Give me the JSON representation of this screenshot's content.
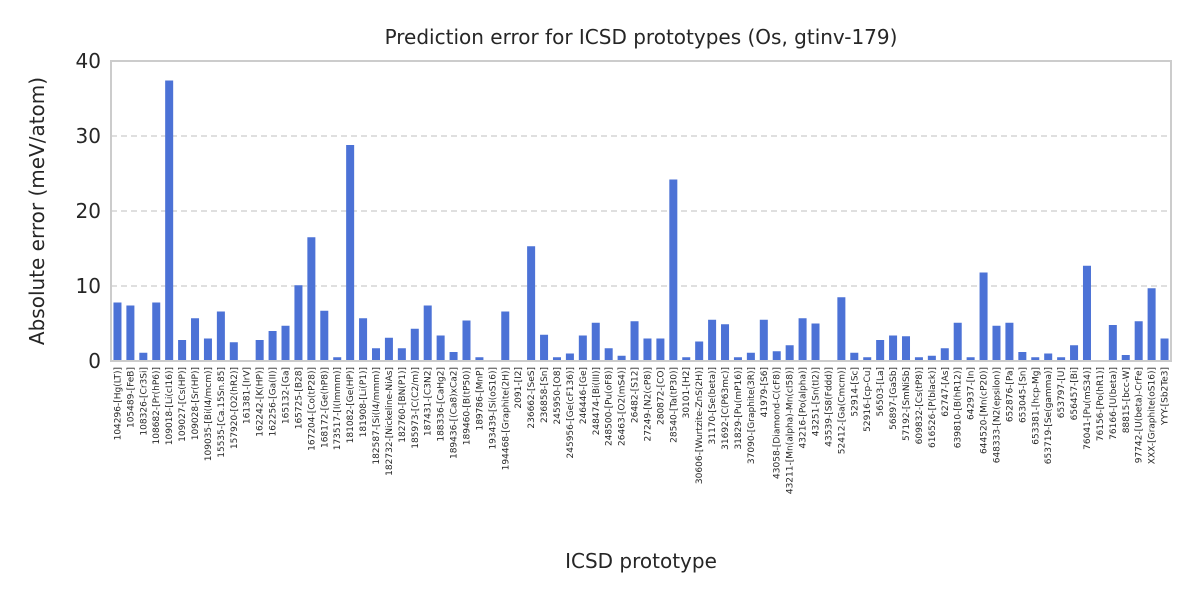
{
  "chart_data": {
    "type": "bar",
    "title": "Prediction error for ICSD prototypes (Os, gtinv-179)",
    "xlabel": "ICSD prototype",
    "ylabel": "Absolute error (meV/atom)",
    "ylim": [
      0,
      40
    ],
    "yticks": [
      0,
      10,
      20,
      30,
      40
    ],
    "grid": "horizontal dashed",
    "bar_color": "#4c72d6",
    "categories": [
      "104296-[Hg(LT)]",
      "105489-[FeB]",
      "108326-[Cr3Si]",
      "108682-[Pr(hP6)]",
      "109018-[Li(cI16)]",
      "109027-[Cs(HP)]",
      "109028-[Sr(HP)]",
      "109035-[Bi(I4/mcm)]",
      "15535-[Ca.15Sn.85]",
      "157920-[O2(hR2)]",
      "161381-[IrV]",
      "162242-[K(HP)]",
      "162256-[Ga(II)]",
      "165132-[Ga]",
      "165725-[B28]",
      "167204-[Co(tP28)]",
      "168172-[Ge(hP8)]",
      "173517-[I(Immm)]",
      "181082-[Ge(HP)]",
      "181908-[Li(P1)]",
      "182587-[Si(I4/mmm)]",
      "182732-[Nickeline-NiAs]",
      "182760-[BN(P1)]",
      "185973-[C(C2/m)]",
      "187431-[C3N2]",
      "188336-[CaHg2]",
      "189436-[(Ca8)xCa2]",
      "189460-[B(tP50)]",
      "189786-[MnP]",
      "193439-[Si(oS16)]",
      "194468-[Graphite(2H)]",
      "2091-[I2]",
      "236662-[SeS]",
      "236858-[Sn]",
      "245950-[O8]",
      "245956-[Ge(cF136)]",
      "246446-[Ge]",
      "248474-[Bi(III)]",
      "248500-[Pu(oF8)]",
      "26463-[O2(mS4)]",
      "26482-[S12]",
      "27249-[N2(cP8)]",
      "280872-[CO]",
      "28540-[Ta(tP30)]",
      "30101-[H2]",
      "30606-[Wurtzite-ZnS(2H)]",
      "31170-[Se(beta)]",
      "31692-[C(P63mc)]",
      "31829-[Pu(mP16)]",
      "37090-[Graphite(3R)]",
      "41979-[S6]",
      "43058-[Diamond-C(cF8)]",
      "43211-[Mn(alpha)-Mn(cI58)]",
      "43216-[Po(alpha)]",
      "43251-[Sn(tI2)]",
      "43539-[S8(Fddd)]",
      "52412-[Ga(Cmcm)]",
      "52914-[Sc]",
      "52916-[cp-Cu]",
      "56503-[La]",
      "56897-[GaSb]",
      "57192-[SmNiSb]",
      "609832-[Cs(tP8)]",
      "616526-[P(black)]",
      "62747-[As]",
      "639810-[B(hR12)]",
      "642937-[In]",
      "644520-[Mn(cP20)]",
      "648333-[N2(epsilon)]",
      "652876-[Pa]",
      "653045-[Sn]",
      "653381-[hcp-Mg]",
      "653719-[Se(gamma)]",
      "653797-[U]",
      "656457-[Bi]",
      "76041-[Pu(mS34)]",
      "76156-[Po(hR1)]",
      "76166-[U(beta)]",
      "88815-[bcc-W]",
      "97742-[U(beta)-CrFe]",
      "XXX-[Graphite(oS16)]",
      "YYY-[Sb2Te3]"
    ],
    "values": [
      7.8,
      7.4,
      1.1,
      7.8,
      37.4,
      2.8,
      5.7,
      3.0,
      6.6,
      2.5,
      0.0,
      2.8,
      4.0,
      4.7,
      10.1,
      16.5,
      6.7,
      0.5,
      28.8,
      5.7,
      1.7,
      3.1,
      1.7,
      4.3,
      7.4,
      3.4,
      1.2,
      5.4,
      0.5,
      0.0,
      6.6,
      0.0,
      15.3,
      3.5,
      0.5,
      1.0,
      3.4,
      5.1,
      1.7,
      0.7,
      5.3,
      3.0,
      3.0,
      24.2,
      0.5,
      2.6,
      5.5,
      4.9,
      0.5,
      1.1,
      5.5,
      1.3,
      2.1,
      5.7,
      5.0,
      0.0,
      8.5,
      1.1,
      0.5,
      2.8,
      3.4,
      3.3,
      0.5,
      0.7,
      1.7,
      5.1,
      0.5,
      11.8,
      4.7,
      5.1,
      1.2,
      0.5,
      1.0,
      0.5,
      2.1,
      12.7,
      0.0,
      4.8,
      0.8,
      5.3,
      9.7,
      3.0
    ]
  }
}
